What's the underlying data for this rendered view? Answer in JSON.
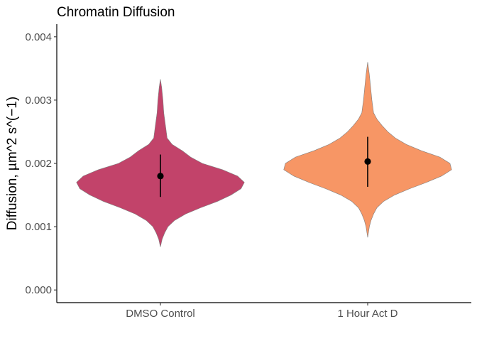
{
  "chart_data": {
    "type": "violin",
    "title": "Chromatin Diffusion",
    "xlabel": "",
    "ylabel": "Diffusion, µm^2 s^(−1)",
    "ylim": [
      -0.0002,
      0.0042
    ],
    "yticks": [
      0.0,
      0.001,
      0.002,
      0.003,
      0.004
    ],
    "ytick_labels": [
      "0.000",
      "0.001",
      "0.002",
      "0.003",
      "0.004"
    ],
    "grid": false,
    "categories": [
      "DMSO Control",
      "1 Hour Act D"
    ],
    "series": [
      {
        "category": "DMSO Control",
        "color": "#C2436A",
        "mean": 0.0018,
        "sd_low": 0.00147,
        "sd_high": 0.00214,
        "density": [
          [
            0.00068,
            0.0
          ],
          [
            0.0008,
            0.02
          ],
          [
            0.0009,
            0.05
          ],
          [
            0.001,
            0.09
          ],
          [
            0.0011,
            0.17
          ],
          [
            0.0012,
            0.3
          ],
          [
            0.0013,
            0.48
          ],
          [
            0.0014,
            0.68
          ],
          [
            0.0015,
            0.84
          ],
          [
            0.0016,
            0.96
          ],
          [
            0.0017,
            1.0
          ],
          [
            0.0018,
            0.92
          ],
          [
            0.0019,
            0.74
          ],
          [
            0.002,
            0.5
          ],
          [
            0.0021,
            0.36
          ],
          [
            0.0022,
            0.26
          ],
          [
            0.0023,
            0.14
          ],
          [
            0.0024,
            0.08
          ],
          [
            0.0026,
            0.06
          ],
          [
            0.0028,
            0.04
          ],
          [
            0.003,
            0.03
          ],
          [
            0.0032,
            0.015
          ],
          [
            0.00333,
            0.0
          ]
        ]
      },
      {
        "category": "1 Hour Act D",
        "color": "#F79665",
        "mean": 0.00203,
        "sd_low": 0.00163,
        "sd_high": 0.00242,
        "density": [
          [
            0.00083,
            0.0
          ],
          [
            0.001,
            0.02
          ],
          [
            0.0011,
            0.04
          ],
          [
            0.0012,
            0.07
          ],
          [
            0.0013,
            0.11
          ],
          [
            0.0014,
            0.19
          ],
          [
            0.0015,
            0.32
          ],
          [
            0.0016,
            0.5
          ],
          [
            0.0017,
            0.7
          ],
          [
            0.0018,
            0.88
          ],
          [
            0.0019,
            1.0
          ],
          [
            0.002,
            0.98
          ],
          [
            0.0021,
            0.86
          ],
          [
            0.0022,
            0.64
          ],
          [
            0.0023,
            0.46
          ],
          [
            0.0024,
            0.33
          ],
          [
            0.0025,
            0.24
          ],
          [
            0.0026,
            0.17
          ],
          [
            0.0027,
            0.11
          ],
          [
            0.0028,
            0.07
          ],
          [
            0.003,
            0.05
          ],
          [
            0.0032,
            0.035
          ],
          [
            0.0034,
            0.02
          ],
          [
            0.0036,
            0.0
          ]
        ]
      }
    ]
  }
}
